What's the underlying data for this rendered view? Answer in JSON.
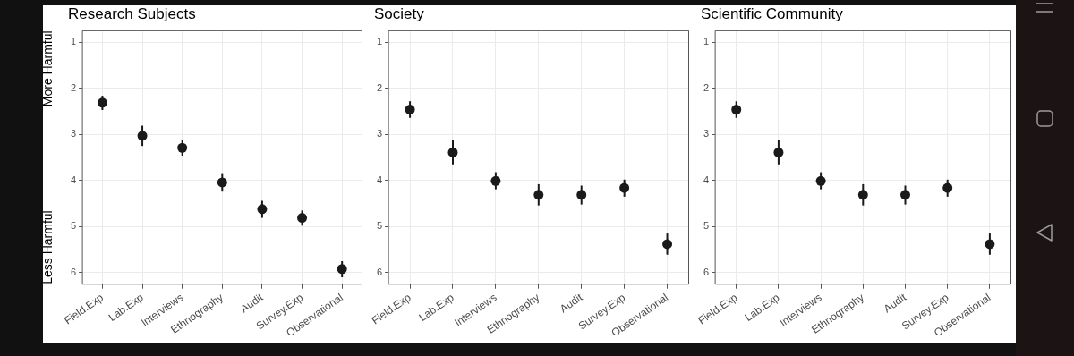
{
  "chart_data": [
    {
      "type": "scatter",
      "title": "Research Subjects",
      "categories": [
        "Field.Exp",
        "Lab.Exp",
        "Interviews",
        "Ethnography",
        "Audit",
        "Survey.Exp",
        "Observational"
      ],
      "color": "#1a1a1a",
      "marker": "circle",
      "values": [
        2.31,
        3.03,
        3.29,
        4.04,
        4.62,
        4.81,
        5.92
      ],
      "errors": [
        [
          2.16,
          2.47
        ],
        [
          2.81,
          3.25
        ],
        [
          3.13,
          3.46
        ],
        [
          3.84,
          4.24
        ],
        [
          4.44,
          4.81
        ],
        [
          4.65,
          4.98
        ],
        [
          5.75,
          6.1
        ]
      ],
      "ylim": [
        6.25,
        0.75
      ],
      "yticks": [
        1,
        2,
        3,
        4,
        5,
        6
      ],
      "grid": true,
      "annotations": [
        "More Harmful",
        "Less Harmful"
      ]
    },
    {
      "type": "scatter",
      "title": "Society",
      "categories": [
        "Field.Exp",
        "Lab.Exp",
        "Interviews",
        "Ethnography",
        "Audit",
        "Survey.Exp",
        "Observational"
      ],
      "color": "#1a1a1a",
      "marker": "circle",
      "values": [
        2.46,
        3.39,
        4.01,
        4.31,
        4.31,
        4.16,
        5.38
      ],
      "errors": [
        [
          2.28,
          2.64
        ],
        [
          3.13,
          3.65
        ],
        [
          3.82,
          4.19
        ],
        [
          4.08,
          4.54
        ],
        [
          4.11,
          4.52
        ],
        [
          3.98,
          4.35
        ],
        [
          5.15,
          5.61
        ]
      ],
      "ylim": [
        6.25,
        0.75
      ],
      "yticks": [
        1,
        2,
        3,
        4,
        5,
        6
      ],
      "grid": true
    },
    {
      "type": "scatter",
      "title": "Scientific Community",
      "categories": [
        "Field.Exp",
        "Lab.Exp",
        "Interviews",
        "Ethnography",
        "Audit",
        "Survey.Exp",
        "Observational"
      ],
      "color": "#1a1a1a",
      "marker": "circle",
      "values": [
        2.46,
        3.39,
        4.01,
        4.31,
        4.31,
        4.16,
        5.38
      ],
      "errors": [
        [
          2.28,
          2.64
        ],
        [
          3.13,
          3.65
        ],
        [
          3.82,
          4.19
        ],
        [
          4.08,
          4.54
        ],
        [
          4.11,
          4.52
        ],
        [
          3.98,
          4.35
        ],
        [
          5.15,
          5.61
        ]
      ],
      "ylim": [
        6.25,
        0.75
      ],
      "yticks": [
        1,
        2,
        3,
        4,
        5,
        6
      ],
      "grid": true
    }
  ]
}
